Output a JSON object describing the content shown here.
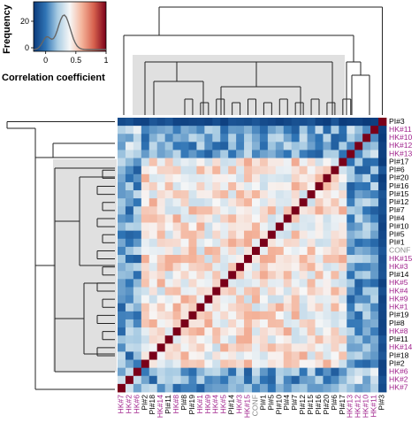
{
  "chart_data": {
    "type": "heatmap",
    "row_labels": [
      "PI#3",
      "HK#11",
      "HK#10",
      "HK#12",
      "HK#13",
      "PI#17",
      "PI#6",
      "PI#20",
      "PI#16",
      "PI#15",
      "PI#12",
      "PI#7",
      "PI#4",
      "PI#10",
      "PI#5",
      "PI#1",
      "CONF",
      "HK#15",
      "HK#3",
      "PI#14",
      "HK#5",
      "HK#4",
      "HK#9",
      "HK#1",
      "PI#19",
      "PI#8",
      "HK#8",
      "PI#11",
      "HK#14",
      "PI#18",
      "PI#2",
      "HK#6",
      "HK#2",
      "HK#7"
    ],
    "col_labels": [
      "HK#7",
      "HK#2",
      "HK#6",
      "PI#2",
      "PI#18",
      "HK#14",
      "PI#11",
      "HK#8",
      "PI#8",
      "PI#19",
      "HK#1",
      "HK#9",
      "HK#4",
      "HK#5",
      "PI#14",
      "HK#3",
      "HK#15",
      "CONF",
      "PI#1",
      "PI#5",
      "PI#10",
      "PI#4",
      "PI#7",
      "PI#12",
      "PI#15",
      "PI#16",
      "PI#20",
      "PI#6",
      "PI#17",
      "HK#13",
      "HK#12",
      "HK#10",
      "HK#11",
      "PI#3"
    ],
    "label_groups": {
      "HK": "#a0228c",
      "PI": "#000000",
      "CONF": "#8a8a8a"
    },
    "diagonal_value": 1,
    "value_range": [
      0,
      1
    ],
    "approx_group_correlation": {
      "core_cluster_within": 0.45,
      "core_cluster_vs_outliers": 0.1,
      "outlier_group_within": 0.2,
      "PI#3_vs_others": -0.15
    },
    "colorbar": {
      "title": "Correlation coefficient",
      "ticks": [
        0,
        0.5,
        1
      ],
      "tick_labels": [
        "0",
        "0.5",
        "1"
      ],
      "histogram_ylabel": "Frequency",
      "histogram_yticks": [
        0,
        20
      ],
      "scale": [
        "#0b3a7a",
        "#2f74b5",
        "#a9cce3",
        "#f7f7f7",
        "#f4b39a",
        "#d6604d",
        "#7a0019"
      ]
    },
    "dendrogram_top": true,
    "dendrogram_left": true,
    "highlight_box_color": "#e0e0e0"
  },
  "colors": {
    "diagonal": "#7a0019",
    "dendrogram_line": "#222222"
  }
}
